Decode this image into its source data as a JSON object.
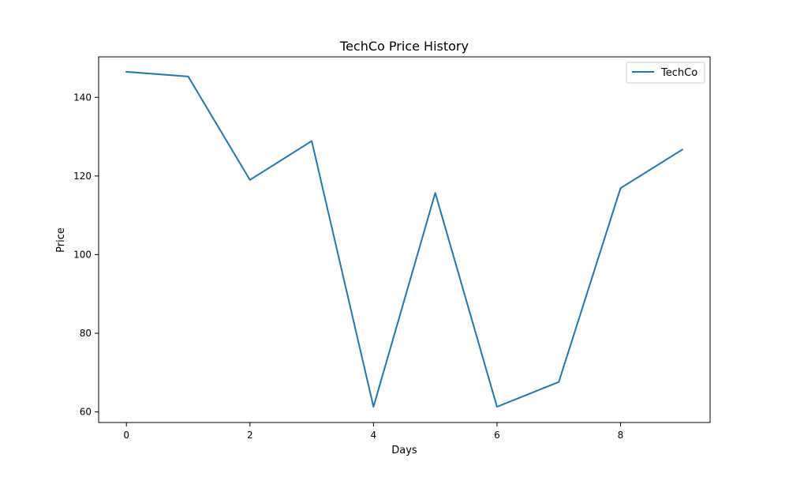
{
  "chart_data": {
    "type": "line",
    "title": "TechCo Price History",
    "xlabel": "Days",
    "ylabel": "Price",
    "xlim": [
      -0.45,
      9.45
    ],
    "ylim": [
      57.3,
      150.3
    ],
    "x_ticks": [
      0,
      2,
      4,
      6,
      8
    ],
    "y_ticks": [
      60,
      80,
      100,
      120,
      140
    ],
    "grid": false,
    "legend_position": "top-right",
    "series": [
      {
        "name": "TechCo",
        "color": "#1f77b4",
        "x": [
          0,
          1,
          2,
          3,
          4,
          5,
          6,
          7,
          8,
          9
        ],
        "y": [
          146.5,
          145.3,
          119.0,
          128.9,
          61.3,
          115.7,
          61.3,
          67.6,
          116.9,
          126.7
        ]
      }
    ]
  }
}
